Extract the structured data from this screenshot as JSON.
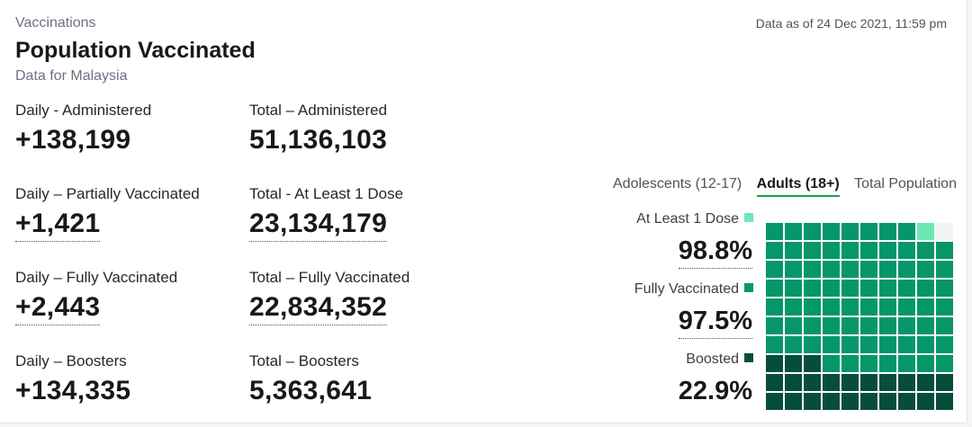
{
  "header": {
    "section": "Vaccinations",
    "title": "Population Vaccinated",
    "subtitle": "Data for Malaysia",
    "as_of": "Data as of 24 Dec 2021, 11:59 pm"
  },
  "stats": {
    "daily_administered": {
      "label": "Daily - Administered",
      "value": "+138,199"
    },
    "total_administered": {
      "label": "Total – Administered",
      "value": "51,136,103"
    },
    "daily_partial": {
      "label": "Daily – Partially Vaccinated",
      "value": "+1,421"
    },
    "total_one_dose": {
      "label": "Total - At Least 1 Dose",
      "value": "23,134,179"
    },
    "daily_full": {
      "label": "Daily – Fully Vaccinated",
      "value": "+2,443"
    },
    "total_full": {
      "label": "Total – Fully Vaccinated",
      "value": "22,834,352"
    },
    "daily_boosters": {
      "label": "Daily – Boosters",
      "value": "+134,335"
    },
    "total_boosters": {
      "label": "Total – Boosters",
      "value": "5,363,641"
    }
  },
  "tabs": [
    "Adolescents (12-17)",
    "Adults (18+)",
    "Total Population"
  ],
  "legend": {
    "one_dose": {
      "label": "At Least 1 Dose",
      "pct": "98.8%",
      "color": "#6ee7b7",
      "fraction": 0.988
    },
    "full": {
      "label": "Fully Vaccinated",
      "pct": "97.5%",
      "color": "#059669",
      "fraction": 0.975
    },
    "boosted": {
      "label": "Boosted",
      "pct": "22.9%",
      "color": "#064e3b",
      "fraction": 0.229
    }
  },
  "colors": {
    "empty_cell": "#f1f5f4",
    "active_tab_underline": "#16a34a"
  }
}
